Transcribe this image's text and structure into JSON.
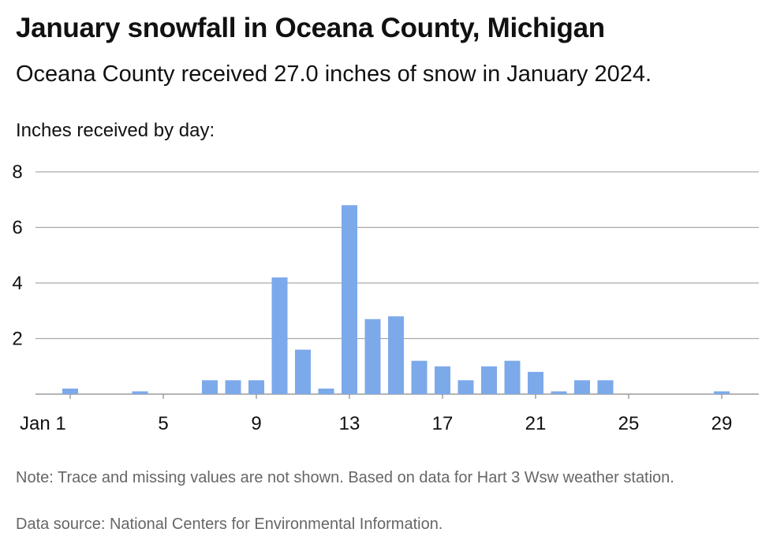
{
  "header": {
    "title": "January snowfall in Oceana County, Michigan",
    "subtitle": "Oceana County received 27.0 inches of snow in January 2024.",
    "axis_caption": "Inches received by day:"
  },
  "footer": {
    "note": "Note: Trace and missing values are not shown. Based on data for Hart 3 Wsw weather station.",
    "source": "Data source: National Centers for Environmental Information."
  },
  "colors": {
    "bar": "#7ca9ea",
    "grid": "#aaaaaa",
    "baseline": "#888888"
  },
  "chart_data": {
    "type": "bar",
    "title": "January snowfall in Oceana County, Michigan",
    "ylabel": "Inches received by day:",
    "xlabel": "",
    "x": [
      1,
      2,
      3,
      4,
      5,
      6,
      7,
      8,
      9,
      10,
      11,
      12,
      13,
      14,
      15,
      16,
      17,
      18,
      19,
      20,
      21,
      22,
      23,
      24,
      25,
      26,
      27,
      28,
      29,
      30,
      31
    ],
    "values": [
      0.2,
      0,
      0,
      0.1,
      0,
      0,
      0.5,
      0.5,
      0.5,
      4.2,
      1.6,
      0.2,
      6.8,
      2.7,
      2.8,
      1.2,
      1.0,
      0.5,
      1.0,
      1.2,
      0.8,
      0.1,
      0.5,
      0.5,
      0,
      0,
      0,
      0,
      0.1,
      0,
      0
    ],
    "ylim": [
      0,
      8
    ],
    "yticks": [
      "2",
      "4",
      "6",
      "8"
    ],
    "ytick_values": [
      2,
      4,
      6,
      8
    ],
    "xticks": [
      "Jan 1",
      "5",
      "9",
      "13",
      "17",
      "21",
      "25",
      "29"
    ],
    "xtick_values": [
      1,
      5,
      9,
      13,
      17,
      21,
      25,
      29
    ],
    "grid": true,
    "legend": "none"
  }
}
